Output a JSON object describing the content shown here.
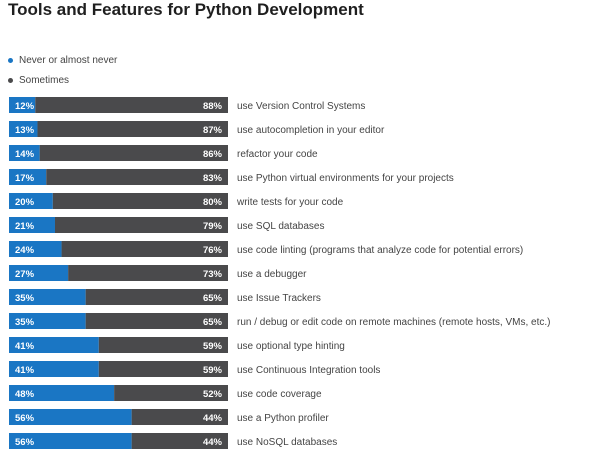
{
  "chart_data": {
    "type": "bar",
    "stacked": true,
    "orientation": "horizontal",
    "title": "Tools and Features for Python Development",
    "legend": [
      {
        "name": "Never or almost never",
        "color": "#1a76c4"
      },
      {
        "name": "Sometimes",
        "color": "#4a4a4c"
      }
    ],
    "categories": [
      "use Version Control Systems",
      "use autocompletion in your editor",
      "refactor your code",
      "use Python virtual environments for your projects",
      "write tests for your code",
      "use SQL databases",
      "use code linting (programs that analyze code for potential errors)",
      "use a debugger",
      "use Issue Trackers",
      "run / debug or edit code on remote machines (remote hosts, VMs, etc.)",
      "use optional type hinting",
      "use Continuous Integration tools",
      "use code coverage",
      "use a Python profiler",
      "use NoSQL databases"
    ],
    "series": [
      {
        "name": "Never or almost never",
        "values": [
          12,
          13,
          14,
          17,
          20,
          21,
          24,
          27,
          35,
          35,
          41,
          41,
          48,
          56,
          56
        ]
      },
      {
        "name": "Sometimes",
        "values": [
          88,
          87,
          86,
          83,
          80,
          79,
          76,
          73,
          65,
          65,
          59,
          59,
          52,
          44,
          44
        ]
      }
    ],
    "value_suffix": "%",
    "xlim": [
      0,
      100
    ]
  }
}
